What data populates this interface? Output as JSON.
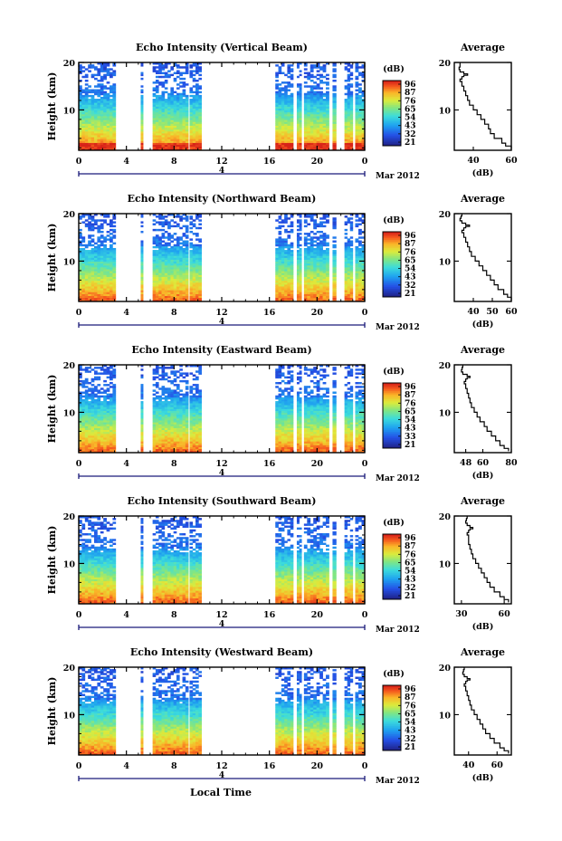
{
  "figure": {
    "xlabel": "Local Time",
    "date_label": "Mar 2012",
    "date_day": "4",
    "ylabel": "Height (km)",
    "colorbar_unit": "(dB)",
    "average_title": "Average",
    "average_xlabel": "(dB)"
  },
  "chart_data": [
    {
      "type": "heatmap",
      "title": "Echo Intensity (Vertical Beam)",
      "xlim": [
        0,
        24
      ],
      "xticks": [
        "0",
        "4",
        "8",
        "12",
        "16",
        "20",
        "0"
      ],
      "ylim": [
        1.5,
        20
      ],
      "yticks": [
        "10",
        "20"
      ],
      "colorbar_ticks": [
        "96",
        "87",
        "76",
        "65",
        "54",
        "43",
        "32",
        "21"
      ],
      "observation_segments": [
        [
          0,
          3.1
        ],
        [
          5.2,
          5.4
        ],
        [
          6.2,
          9.2
        ],
        [
          9.3,
          10.3
        ],
        [
          16.5,
          18.0
        ],
        [
          18.3,
          18.7
        ],
        [
          18.9,
          21.0
        ],
        [
          21.3,
          21.6
        ],
        [
          22.3,
          23.0
        ],
        [
          23.2,
          24.0
        ]
      ],
      "average": {
        "xlim": [
          30,
          60
        ],
        "xticks": [
          "40",
          "60"
        ],
        "ylim": [
          1.5,
          20
        ],
        "yticks": [
          "10",
          "20"
        ],
        "profile": [
          [
            1.8,
            60
          ],
          [
            2.4,
            57
          ],
          [
            3,
            55
          ],
          [
            4,
            51
          ],
          [
            5,
            49
          ],
          [
            6,
            48
          ],
          [
            7,
            46
          ],
          [
            8,
            44
          ],
          [
            9,
            42
          ],
          [
            10,
            40
          ],
          [
            11,
            38
          ],
          [
            12,
            37
          ],
          [
            13,
            36
          ],
          [
            14,
            35
          ],
          [
            15,
            34
          ],
          [
            16,
            33
          ],
          [
            16.5,
            34
          ],
          [
            17,
            35
          ],
          [
            17.3,
            37
          ],
          [
            17.6,
            35
          ],
          [
            18,
            33
          ],
          [
            18.5,
            32.5
          ],
          [
            19,
            33
          ],
          [
            19.5,
            33
          ],
          [
            20,
            33
          ]
        ]
      }
    },
    {
      "type": "heatmap",
      "title": "Echo Intensity (Northward Beam)",
      "xlim": [
        0,
        24
      ],
      "xticks": [
        "0",
        "4",
        "8",
        "12",
        "16",
        "20",
        "0"
      ],
      "ylim": [
        1.5,
        20
      ],
      "yticks": [
        "10",
        "20"
      ],
      "colorbar_ticks": [
        "96",
        "87",
        "76",
        "65",
        "54",
        "43",
        "32",
        "21"
      ],
      "observation_segments": [
        [
          0,
          3.1
        ],
        [
          5.2,
          5.4
        ],
        [
          6.2,
          9.2
        ],
        [
          9.3,
          10.3
        ],
        [
          16.5,
          18.0
        ],
        [
          18.3,
          18.7
        ],
        [
          18.9,
          21.0
        ],
        [
          21.3,
          21.6
        ],
        [
          22.3,
          23.0
        ],
        [
          23.2,
          24.0
        ]
      ],
      "average": {
        "xlim": [
          30,
          60
        ],
        "xticks": [
          "40",
          "50",
          "60"
        ],
        "ylim": [
          1.5,
          20
        ],
        "yticks": [
          "10",
          "20"
        ],
        "profile": [
          [
            1.8,
            60
          ],
          [
            2.4,
            58
          ],
          [
            3,
            56
          ],
          [
            4,
            53
          ],
          [
            5,
            51
          ],
          [
            6,
            49
          ],
          [
            7,
            47
          ],
          [
            8,
            45
          ],
          [
            9,
            43
          ],
          [
            10,
            41
          ],
          [
            11,
            39
          ],
          [
            12,
            38
          ],
          [
            13,
            37
          ],
          [
            14,
            36
          ],
          [
            15,
            35
          ],
          [
            16,
            34
          ],
          [
            16.5,
            35
          ],
          [
            17,
            36
          ],
          [
            17.3,
            38
          ],
          [
            17.6,
            36
          ],
          [
            18,
            34
          ],
          [
            18.5,
            33
          ],
          [
            19,
            33.5
          ],
          [
            19.5,
            34
          ],
          [
            20,
            34
          ]
        ]
      }
    },
    {
      "type": "heatmap",
      "title": "Echo Intensity (Eastward Beam)",
      "xlim": [
        0,
        24
      ],
      "xticks": [
        "0",
        "4",
        "8",
        "12",
        "16",
        "20",
        "0"
      ],
      "ylim": [
        1.5,
        20
      ],
      "yticks": [
        "10",
        "20"
      ],
      "colorbar_ticks": [
        "96",
        "87",
        "76",
        "65",
        "54",
        "43",
        "33",
        "21"
      ],
      "observation_segments": [
        [
          0,
          3.1
        ],
        [
          5.2,
          5.4
        ],
        [
          6.2,
          9.2
        ],
        [
          9.3,
          10.3
        ],
        [
          16.5,
          18.0
        ],
        [
          18.3,
          18.7
        ],
        [
          18.9,
          21.0
        ],
        [
          21.3,
          21.6
        ],
        [
          22.3,
          23.0
        ],
        [
          23.2,
          24.0
        ]
      ],
      "average": {
        "xlim": [
          40,
          80
        ],
        "xticks": [
          "48",
          "60",
          "80"
        ],
        "ylim": [
          1.5,
          20
        ],
        "yticks": [
          "10",
          "20"
        ],
        "profile": [
          [
            1.8,
            78
          ],
          [
            2.4,
            75
          ],
          [
            3,
            72
          ],
          [
            4,
            69
          ],
          [
            5,
            66
          ],
          [
            6,
            63
          ],
          [
            7,
            61
          ],
          [
            8,
            58
          ],
          [
            9,
            56
          ],
          [
            10,
            54
          ],
          [
            11,
            52
          ],
          [
            12,
            51
          ],
          [
            13,
            50
          ],
          [
            14,
            49
          ],
          [
            15,
            48
          ],
          [
            16,
            47
          ],
          [
            16.5,
            48
          ],
          [
            17,
            49
          ],
          [
            17.3,
            51
          ],
          [
            17.6,
            49
          ],
          [
            18,
            46
          ],
          [
            18.5,
            45
          ],
          [
            19,
            45.5
          ],
          [
            19.5,
            46
          ],
          [
            20,
            46
          ]
        ]
      }
    },
    {
      "type": "heatmap",
      "title": "Echo Intensity (Southward Beam)",
      "xlim": [
        0,
        24
      ],
      "xticks": [
        "0",
        "4",
        "8",
        "12",
        "16",
        "20",
        "0"
      ],
      "ylim": [
        1.5,
        20
      ],
      "yticks": [
        "10",
        "20"
      ],
      "colorbar_ticks": [
        "96",
        "87",
        "76",
        "65",
        "54",
        "43",
        "32",
        "21"
      ],
      "observation_segments": [
        [
          0,
          3.1
        ],
        [
          5.2,
          5.4
        ],
        [
          6.2,
          9.2
        ],
        [
          9.3,
          10.3
        ],
        [
          16.5,
          18.0
        ],
        [
          18.3,
          18.7
        ],
        [
          18.9,
          21.0
        ],
        [
          21.3,
          21.6
        ],
        [
          22.3,
          23.0
        ],
        [
          23.2,
          24.0
        ]
      ],
      "average": {
        "xlim": [
          25,
          65
        ],
        "xticks": [
          "30",
          "60"
        ],
        "ylim": [
          1.5,
          20
        ],
        "yticks": [
          "10",
          "20"
        ],
        "profile": [
          [
            1.8,
            63
          ],
          [
            2.4,
            60
          ],
          [
            3,
            57
          ],
          [
            4,
            53
          ],
          [
            5,
            50
          ],
          [
            6,
            48
          ],
          [
            7,
            46
          ],
          [
            8,
            44
          ],
          [
            9,
            42
          ],
          [
            10,
            40
          ],
          [
            11,
            38
          ],
          [
            12,
            37
          ],
          [
            13,
            36
          ],
          [
            14,
            35
          ],
          [
            15,
            35
          ],
          [
            16,
            34
          ],
          [
            16.5,
            35
          ],
          [
            17,
            36
          ],
          [
            17.3,
            38
          ],
          [
            17.6,
            36
          ],
          [
            18,
            34
          ],
          [
            18.5,
            33
          ],
          [
            19,
            33.5
          ],
          [
            19.5,
            34
          ],
          [
            20,
            34
          ]
        ]
      }
    },
    {
      "type": "heatmap",
      "title": "Echo Intensity (Westward Beam)",
      "xlim": [
        0,
        24
      ],
      "xticks": [
        "0",
        "4",
        "8",
        "12",
        "16",
        "20",
        "0"
      ],
      "ylim": [
        1.5,
        20
      ],
      "yticks": [
        "10",
        "20"
      ],
      "colorbar_ticks": [
        "96",
        "87",
        "76",
        "65",
        "54",
        "43",
        "32",
        "21"
      ],
      "observation_segments": [
        [
          0,
          3.1
        ],
        [
          5.2,
          5.4
        ],
        [
          6.2,
          9.2
        ],
        [
          9.3,
          10.3
        ],
        [
          16.5,
          18.0
        ],
        [
          18.3,
          18.7
        ],
        [
          18.9,
          21.0
        ],
        [
          21.3,
          21.6
        ],
        [
          22.3,
          23.0
        ],
        [
          23.2,
          24.0
        ]
      ],
      "average": {
        "xlim": [
          30,
          70
        ],
        "xticks": [
          "40",
          "60"
        ],
        "ylim": [
          1.5,
          20
        ],
        "yticks": [
          "10",
          "20"
        ],
        "profile": [
          [
            1.8,
            68
          ],
          [
            2.4,
            65
          ],
          [
            3,
            62
          ],
          [
            4,
            58
          ],
          [
            5,
            55
          ],
          [
            6,
            52
          ],
          [
            7,
            50
          ],
          [
            8,
            48
          ],
          [
            9,
            46
          ],
          [
            10,
            44
          ],
          [
            11,
            42
          ],
          [
            12,
            41
          ],
          [
            13,
            40
          ],
          [
            14,
            39
          ],
          [
            15,
            38
          ],
          [
            16,
            37
          ],
          [
            16.5,
            38
          ],
          [
            17,
            39
          ],
          [
            17.3,
            41
          ],
          [
            17.6,
            39
          ],
          [
            18,
            37
          ],
          [
            18.5,
            36
          ],
          [
            19,
            36.5
          ],
          [
            19.5,
            37
          ],
          [
            20,
            37
          ]
        ]
      }
    }
  ]
}
